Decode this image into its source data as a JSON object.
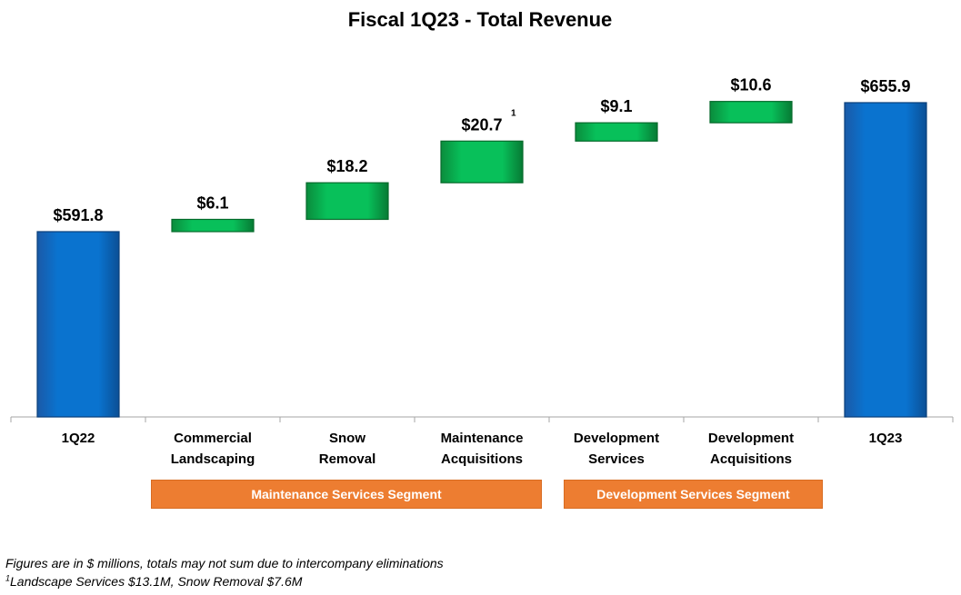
{
  "chart_data": {
    "type": "waterfall",
    "title": "Fiscal 1Q23 - Total Revenue",
    "ylim": [
      0,
      700
    ],
    "colors": {
      "total": "#0070c0",
      "increase": "#00b050",
      "axis": "#a6a6a6"
    },
    "bars": [
      {
        "label_lines": [
          "1Q22"
        ],
        "value": 591.8,
        "kind": "total",
        "label": "$591.8",
        "footnote": ""
      },
      {
        "label_lines": [
          "Commercial",
          "Landscaping"
        ],
        "value": 6.1,
        "kind": "increase",
        "label": "$6.1",
        "footnote": ""
      },
      {
        "label_lines": [
          "Snow",
          "Removal"
        ],
        "value": 18.2,
        "kind": "increase",
        "label": "$18.2",
        "footnote": ""
      },
      {
        "label_lines": [
          "Maintenance",
          "Acquisitions"
        ],
        "value": 20.7,
        "kind": "increase",
        "label": "$20.7",
        "footnote": "1"
      },
      {
        "label_lines": [
          "Development",
          "Services"
        ],
        "value": 9.1,
        "kind": "increase",
        "label": "$9.1",
        "footnote": ""
      },
      {
        "label_lines": [
          "Development",
          "Acquisitions"
        ],
        "value": 10.6,
        "kind": "increase",
        "label": "$10.6",
        "footnote": ""
      },
      {
        "label_lines": [
          "1Q23"
        ],
        "value": 655.9,
        "kind": "total",
        "label": "$655.9",
        "footnote": ""
      }
    ]
  },
  "segments": {
    "maintenance": "Maintenance Services Segment",
    "development": "Development Services Segment"
  },
  "notes": {
    "line1": "Figures are in $ millions, totals may not sum due to intercompany eliminations",
    "line2_mark": "1",
    "line2_text": "Landscape Services $13.1M, Snow Removal $7.6M"
  }
}
